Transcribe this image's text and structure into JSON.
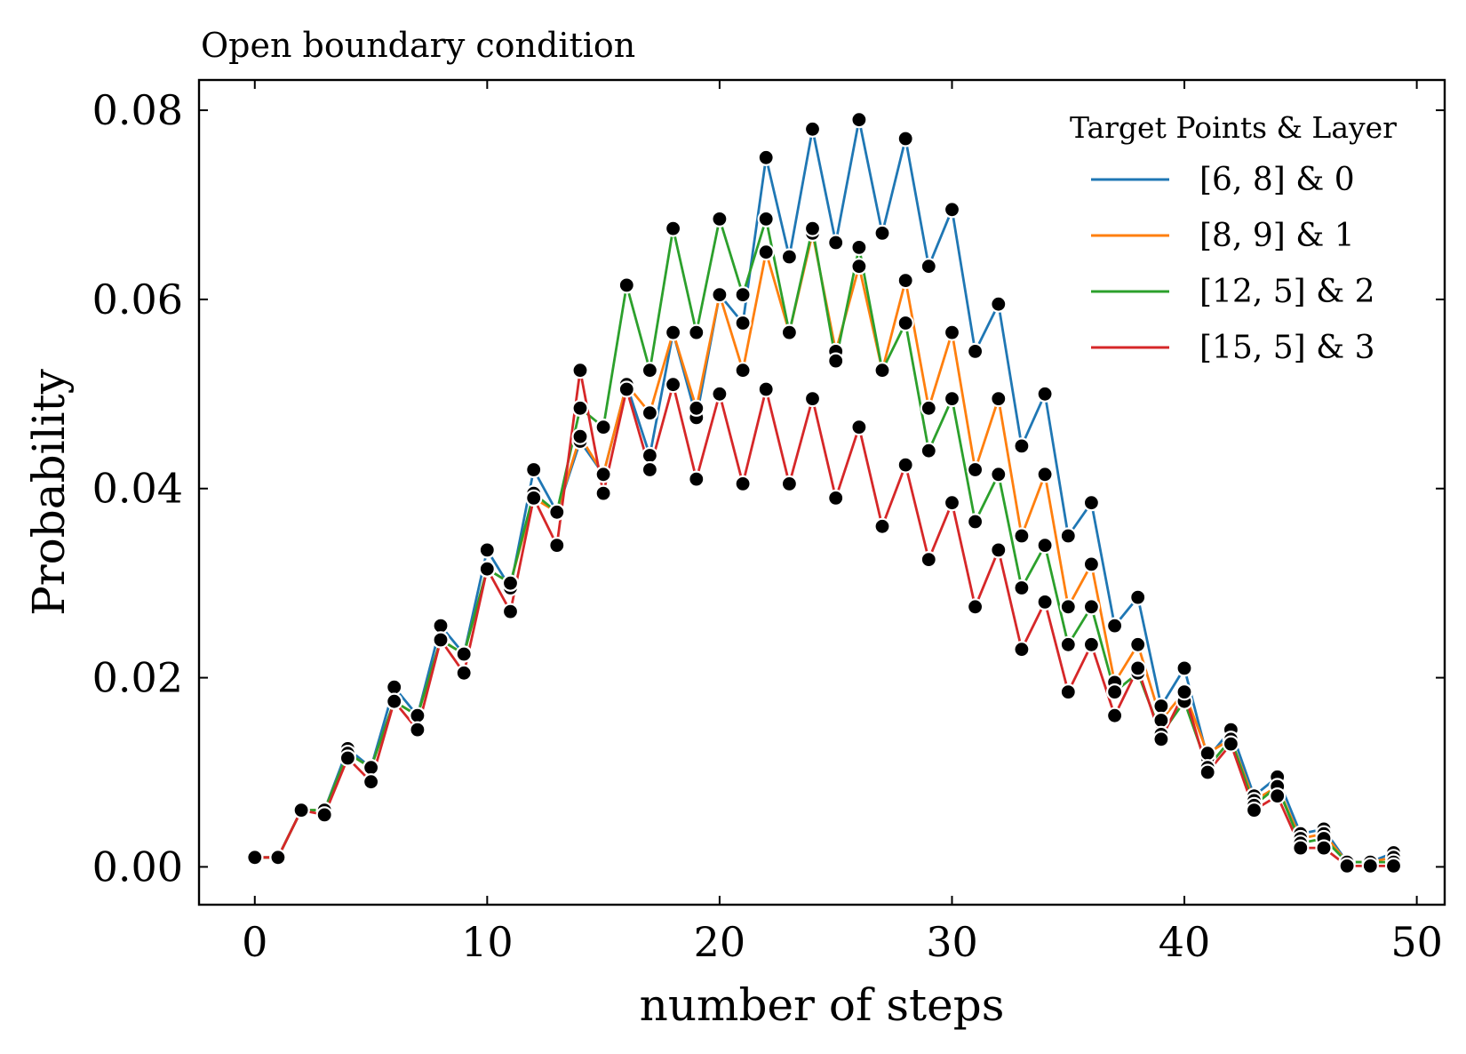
{
  "chart_data": {
    "type": "line",
    "title": "Open boundary condition",
    "xlabel": "number of steps",
    "ylabel": "Probability",
    "xlim": [
      -2.4,
      51.2
    ],
    "ylim": [
      -0.004,
      0.0832
    ],
    "xticks": [
      0,
      10,
      20,
      30,
      40,
      50
    ],
    "xtick_labels": [
      "0",
      "10",
      "20",
      "30",
      "40",
      "50"
    ],
    "yticks": [
      0.0,
      0.02,
      0.04,
      0.06,
      0.08
    ],
    "ytick_labels": [
      "0.00",
      "0.02",
      "0.04",
      "0.06",
      "0.08"
    ],
    "grid": false,
    "legend": {
      "title": "Target Points & Layer",
      "placement": "top-right"
    },
    "marker_color": "#000000",
    "x": [
      0,
      1,
      2,
      3,
      4,
      5,
      6,
      7,
      8,
      9,
      10,
      11,
      12,
      13,
      14,
      15,
      16,
      17,
      18,
      19,
      20,
      21,
      22,
      23,
      24,
      25,
      26,
      27,
      28,
      29,
      30,
      31,
      32,
      33,
      34,
      35,
      36,
      37,
      38,
      39,
      40,
      41,
      42,
      43,
      44,
      45,
      46,
      47,
      48,
      49
    ],
    "series": [
      {
        "name": "[6, 8] & 0",
        "color": "#1f77b4",
        "values": [
          0.001,
          0.001,
          0.006,
          0.006,
          0.0125,
          0.0105,
          0.019,
          0.016,
          0.0255,
          0.0225,
          0.0335,
          0.0295,
          0.042,
          0.0375,
          0.045,
          0.0415,
          0.051,
          0.0435,
          0.0565,
          0.0475,
          0.0605,
          0.0575,
          0.075,
          0.0645,
          0.078,
          0.066,
          0.079,
          0.067,
          0.077,
          0.0635,
          0.0695,
          0.0545,
          0.0595,
          0.0445,
          0.05,
          0.035,
          0.0385,
          0.0255,
          0.0285,
          0.017,
          0.021,
          0.0115,
          0.0145,
          0.0075,
          0.0095,
          0.0035,
          0.004,
          0.0005,
          0.0005,
          0.0015
        ]
      },
      {
        "name": "[8, 9] & 1",
        "color": "#ff7f0e",
        "values": [
          0.001,
          0.001,
          0.006,
          0.006,
          0.012,
          0.0105,
          0.0175,
          0.016,
          0.024,
          0.0225,
          0.0315,
          0.03,
          0.039,
          0.0375,
          0.0455,
          0.0415,
          0.051,
          0.048,
          0.0565,
          0.0485,
          0.0605,
          0.0525,
          0.065,
          0.0565,
          0.067,
          0.0545,
          0.0635,
          0.0525,
          0.062,
          0.0485,
          0.0565,
          0.042,
          0.0495,
          0.035,
          0.0415,
          0.0275,
          0.032,
          0.0195,
          0.0235,
          0.0155,
          0.0185,
          0.012,
          0.0135,
          0.007,
          0.0085,
          0.003,
          0.0035,
          0.0005,
          0.0005,
          0.001
        ]
      },
      {
        "name": "[12, 5] & 2",
        "color": "#2ca02c",
        "values": [
          0.001,
          0.001,
          0.006,
          0.006,
          0.012,
          0.0105,
          0.0175,
          0.016,
          0.024,
          0.0225,
          0.0315,
          0.03,
          0.0395,
          0.0375,
          0.0485,
          0.0465,
          0.0615,
          0.0525,
          0.0675,
          0.0565,
          0.0685,
          0.0605,
          0.0685,
          0.0565,
          0.0675,
          0.0535,
          0.0655,
          0.0525,
          0.0575,
          0.044,
          0.0495,
          0.0365,
          0.0415,
          0.0295,
          0.034,
          0.0235,
          0.0275,
          0.0185,
          0.0205,
          0.014,
          0.0175,
          0.0105,
          0.0135,
          0.0065,
          0.0085,
          0.0025,
          0.003,
          0.0005,
          0.0005,
          0.0005
        ]
      },
      {
        "name": "[15, 5] & 3",
        "color": "#d62728",
        "values": [
          0.001,
          0.001,
          0.006,
          0.0055,
          0.0115,
          0.009,
          0.0175,
          0.0145,
          0.024,
          0.0205,
          0.0315,
          0.027,
          0.039,
          0.034,
          0.0525,
          0.0395,
          0.0505,
          0.042,
          0.051,
          0.041,
          0.05,
          0.0405,
          0.0505,
          0.0405,
          0.0495,
          0.039,
          0.0465,
          0.036,
          0.0425,
          0.0325,
          0.0385,
          0.0275,
          0.0335,
          0.023,
          0.028,
          0.0185,
          0.0235,
          0.016,
          0.021,
          0.0135,
          0.0185,
          0.01,
          0.013,
          0.006,
          0.0075,
          0.002,
          0.002,
          0.0001,
          0.0001,
          0.0001
        ]
      }
    ]
  }
}
